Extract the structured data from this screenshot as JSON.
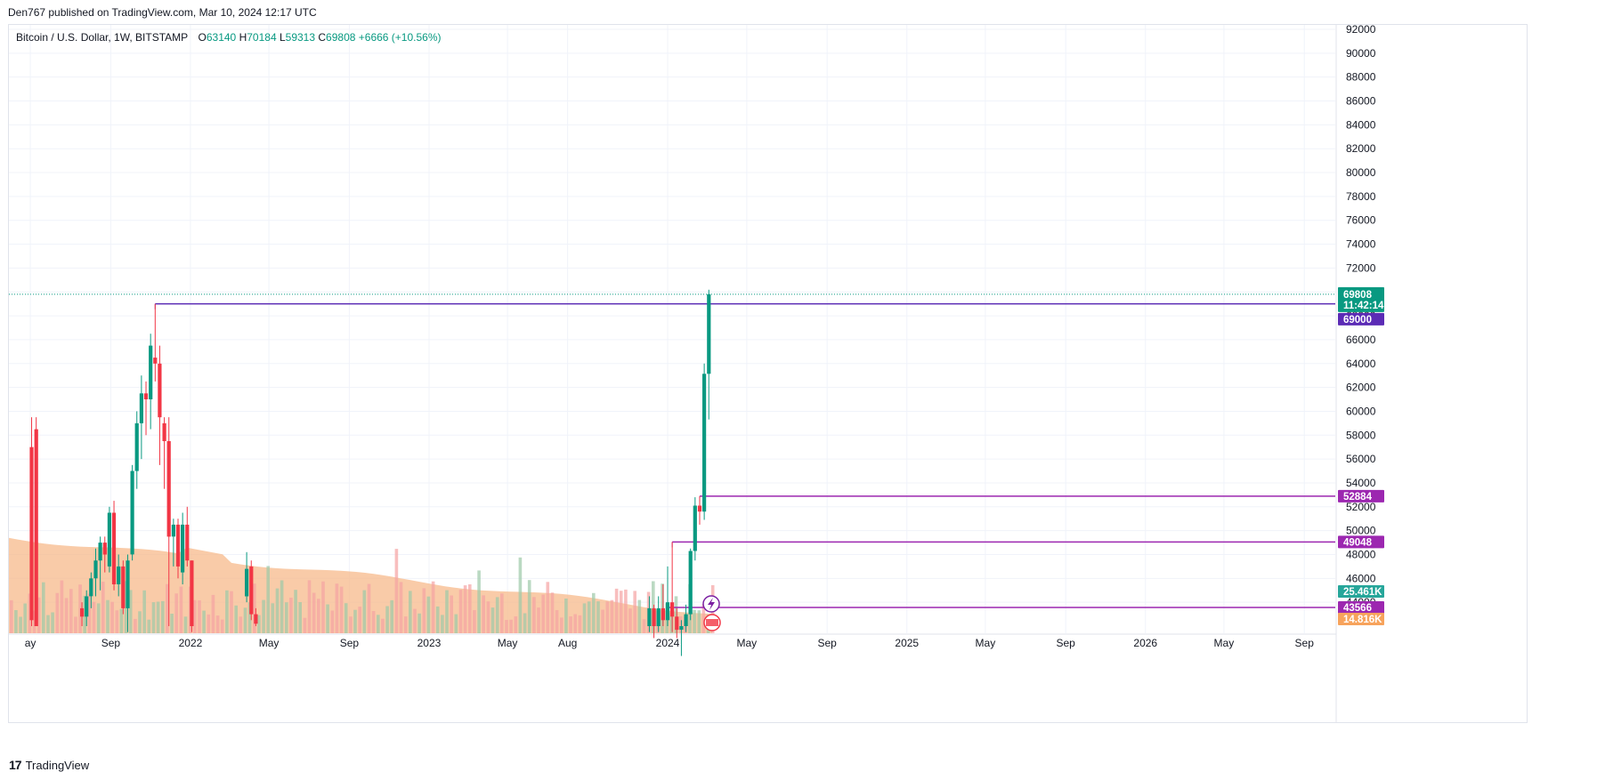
{
  "header": {
    "published": "Den767 published on TradingView.com, Mar 10, 2024 12:17 UTC"
  },
  "legend": {
    "symbol": "Bitcoin / U.S. Dollar, 1W, BITSTAMP",
    "o_key": "O",
    "o_val": "63140",
    "h_key": "H",
    "h_val": "70184",
    "l_key": "L",
    "l_val": "59313",
    "c_key": "C",
    "c_val": "69808",
    "change": "+6666 (+10.56%)"
  },
  "footer": {
    "brand": "TradingView",
    "logo": "17"
  },
  "colors": {
    "up": "#089981",
    "down": "#f23645",
    "level": "#7b1fa2",
    "ath_level": "#5b2bb5",
    "volume_ma": "#f7b98b"
  },
  "chart_data": {
    "type": "candlestick",
    "title": "Bitcoin / U.S. Dollar, 1W, BITSTAMP",
    "timeframe": "1W",
    "ylim": [
      42000,
      93000
    ],
    "y_ticks": [
      44000,
      46000,
      48000,
      50000,
      52000,
      54000,
      56000,
      58000,
      60000,
      62000,
      64000,
      66000,
      68000,
      70000,
      72000,
      74000,
      76000,
      78000,
      80000,
      82000,
      84000,
      86000,
      88000,
      90000,
      92000
    ],
    "y_tick_labels": [
      "44000",
      "46000",
      "48000",
      "50000",
      "52000",
      "54000",
      "56000",
      "58000",
      "60000",
      "62000",
      "64000",
      "66000",
      "68000",
      "70000",
      "72000",
      "74000",
      "76000",
      "78000",
      "80000",
      "82000",
      "84000",
      "86000",
      "88000",
      "90000",
      "92000"
    ],
    "x_labels": [
      {
        "label": "ay",
        "date": "2021-05-01"
      },
      {
        "label": "Sep",
        "date": "2021-09-01"
      },
      {
        "label": "2022",
        "date": "2022-01-01"
      },
      {
        "label": "May",
        "date": "2022-05-01"
      },
      {
        "label": "Sep",
        "date": "2022-09-01"
      },
      {
        "label": "2023",
        "date": "2023-01-01"
      },
      {
        "label": "May",
        "date": "2023-05-01"
      },
      {
        "label": "Aug",
        "date": "2023-08-01"
      },
      {
        "label": "2024",
        "date": "2024-01-01"
      },
      {
        "label": "May",
        "date": "2024-05-01"
      },
      {
        "label": "Sep",
        "date": "2024-09-01"
      },
      {
        "label": "2025",
        "date": "2025-01-01"
      },
      {
        "label": "May",
        "date": "2025-05-01"
      },
      {
        "label": "Sep",
        "date": "2025-09-01"
      },
      {
        "label": "2026",
        "date": "2026-01-01"
      },
      {
        "label": "May",
        "date": "2026-05-01"
      },
      {
        "label": "Sep",
        "date": "2026-09-01"
      }
    ],
    "candles": [
      {
        "date": "2021-05-03",
        "o": 57000,
        "h": 59500,
        "l": 42000,
        "c": 42500
      },
      {
        "date": "2021-05-10",
        "o": 58500,
        "h": 59500,
        "l": 42000,
        "c": 42000
      },
      {
        "date": "2021-07-19",
        "o": 43500,
        "h": 44000,
        "l": 42000,
        "c": 42800
      },
      {
        "date": "2021-07-26",
        "o": 42800,
        "h": 45000,
        "l": 42000,
        "c": 44500
      },
      {
        "date": "2021-08-02",
        "o": 44500,
        "h": 46500,
        "l": 43500,
        "c": 46000
      },
      {
        "date": "2021-08-09",
        "o": 46000,
        "h": 48500,
        "l": 44500,
        "c": 47500
      },
      {
        "date": "2021-08-16",
        "o": 47500,
        "h": 49500,
        "l": 45000,
        "c": 49000
      },
      {
        "date": "2021-08-23",
        "o": 49000,
        "h": 49500,
        "l": 46500,
        "c": 48000
      },
      {
        "date": "2021-08-30",
        "o": 47000,
        "h": 52000,
        "l": 46500,
        "c": 51500
      },
      {
        "date": "2021-09-06",
        "o": 51500,
        "h": 52500,
        "l": 45000,
        "c": 45500
      },
      {
        "date": "2021-09-13",
        "o": 45500,
        "h": 48000,
        "l": 44500,
        "c": 47000
      },
      {
        "date": "2021-09-20",
        "o": 47000,
        "h": 47500,
        "l": 43000,
        "c": 43500
      },
      {
        "date": "2021-09-27",
        "o": 43500,
        "h": 48000,
        "l": 41500,
        "c": 47500
      },
      {
        "date": "2021-10-04",
        "o": 48000,
        "h": 55500,
        "l": 47500,
        "c": 55000
      },
      {
        "date": "2021-10-11",
        "o": 55000,
        "h": 60000,
        "l": 53500,
        "c": 59000
      },
      {
        "date": "2021-10-18",
        "o": 59000,
        "h": 63000,
        "l": 56000,
        "c": 61500
      },
      {
        "date": "2021-10-25",
        "o": 61500,
        "h": 62500,
        "l": 58000,
        "c": 61000
      },
      {
        "date": "2021-11-01",
        "o": 61000,
        "h": 66500,
        "l": 58500,
        "c": 65500
      },
      {
        "date": "2021-11-08",
        "o": 64500,
        "h": 69000,
        "l": 62500,
        "c": 64000
      },
      {
        "date": "2021-11-15",
        "o": 64000,
        "h": 65500,
        "l": 55500,
        "c": 59500
      },
      {
        "date": "2021-11-22",
        "o": 59000,
        "h": 59500,
        "l": 53500,
        "c": 57500
      },
      {
        "date": "2021-11-29",
        "o": 57500,
        "h": 59500,
        "l": 42000,
        "c": 49500
      },
      {
        "date": "2021-12-06",
        "o": 49500,
        "h": 51000,
        "l": 47000,
        "c": 50500
      },
      {
        "date": "2021-12-13",
        "o": 50500,
        "h": 51000,
        "l": 46000,
        "c": 47000
      },
      {
        "date": "2021-12-20",
        "o": 46500,
        "h": 51500,
        "l": 45500,
        "c": 50500
      },
      {
        "date": "2021-12-27",
        "o": 50500,
        "h": 52000,
        "l": 47000,
        "c": 47500
      },
      {
        "date": "2022-01-03",
        "o": 47500,
        "h": 47500,
        "l": 41500,
        "c": 42000
      },
      {
        "date": "2022-03-28",
        "o": 44500,
        "h": 48200,
        "l": 44000,
        "c": 46800
      },
      {
        "date": "2022-04-04",
        "o": 47000,
        "h": 47500,
        "l": 42500,
        "c": 43000
      },
      {
        "date": "2022-04-11",
        "o": 43000,
        "h": 43500,
        "l": 42000,
        "c": 42200
      },
      {
        "date": "2023-12-04",
        "o": 42000,
        "h": 44500,
        "l": 41500,
        "c": 43500
      },
      {
        "date": "2023-12-11",
        "o": 43500,
        "h": 43800,
        "l": 41000,
        "c": 42000
      },
      {
        "date": "2023-12-18",
        "o": 42000,
        "h": 44500,
        "l": 41500,
        "c": 43500
      },
      {
        "date": "2023-12-25",
        "o": 43500,
        "h": 45500,
        "l": 42000,
        "c": 42500
      },
      {
        "date": "2024-01-01",
        "o": 42500,
        "h": 47000,
        "l": 42000,
        "c": 44000
      },
      {
        "date": "2024-01-08",
        "o": 44000,
        "h": 49048,
        "l": 41500,
        "c": 42800
      },
      {
        "date": "2024-01-15",
        "o": 42800,
        "h": 43500,
        "l": 41000,
        "c": 41700
      },
      {
        "date": "2024-01-22",
        "o": 41700,
        "h": 42500,
        "l": 39500,
        "c": 42000
      },
      {
        "date": "2024-01-29",
        "o": 42000,
        "h": 43800,
        "l": 41500,
        "c": 43000
      },
      {
        "date": "2024-02-05",
        "o": 43000,
        "h": 48500,
        "l": 42500,
        "c": 48300
      },
      {
        "date": "2024-02-12",
        "o": 48300,
        "h": 52800,
        "l": 47500,
        "c": 52100
      },
      {
        "date": "2024-02-19",
        "o": 52100,
        "h": 52884,
        "l": 50500,
        "c": 51600
      },
      {
        "date": "2024-02-26",
        "o": 51600,
        "h": 64000,
        "l": 50900,
        "c": 63140
      },
      {
        "date": "2024-03-04",
        "o": 63140,
        "h": 70184,
        "l": 59313,
        "c": 69808
      }
    ],
    "levels": [
      {
        "name": "all-time-high-2021",
        "value": 69000,
        "label": "69000",
        "start_date": "2021-11-08",
        "color": "#5b2bb5"
      },
      {
        "name": "resistance-52884",
        "value": 52884,
        "label": "52884",
        "start_date": "2024-02-19",
        "color": "#9c27b0"
      },
      {
        "name": "support-49048",
        "value": 49048,
        "label": "49048",
        "start_date": "2024-01-08",
        "color": "#9c27b0"
      },
      {
        "name": "support-43566",
        "value": 43566,
        "label": "43566",
        "start_date": "2024-01-01",
        "color": "#9c27b0"
      }
    ],
    "last_price": {
      "value": 69808,
      "label": "69808",
      "countdown": "11:42:14"
    },
    "volume_tags": [
      {
        "label": "25.461K",
        "color": "#26a69a"
      },
      {
        "label": "14.816K",
        "color": "#f7a35c"
      }
    ]
  }
}
